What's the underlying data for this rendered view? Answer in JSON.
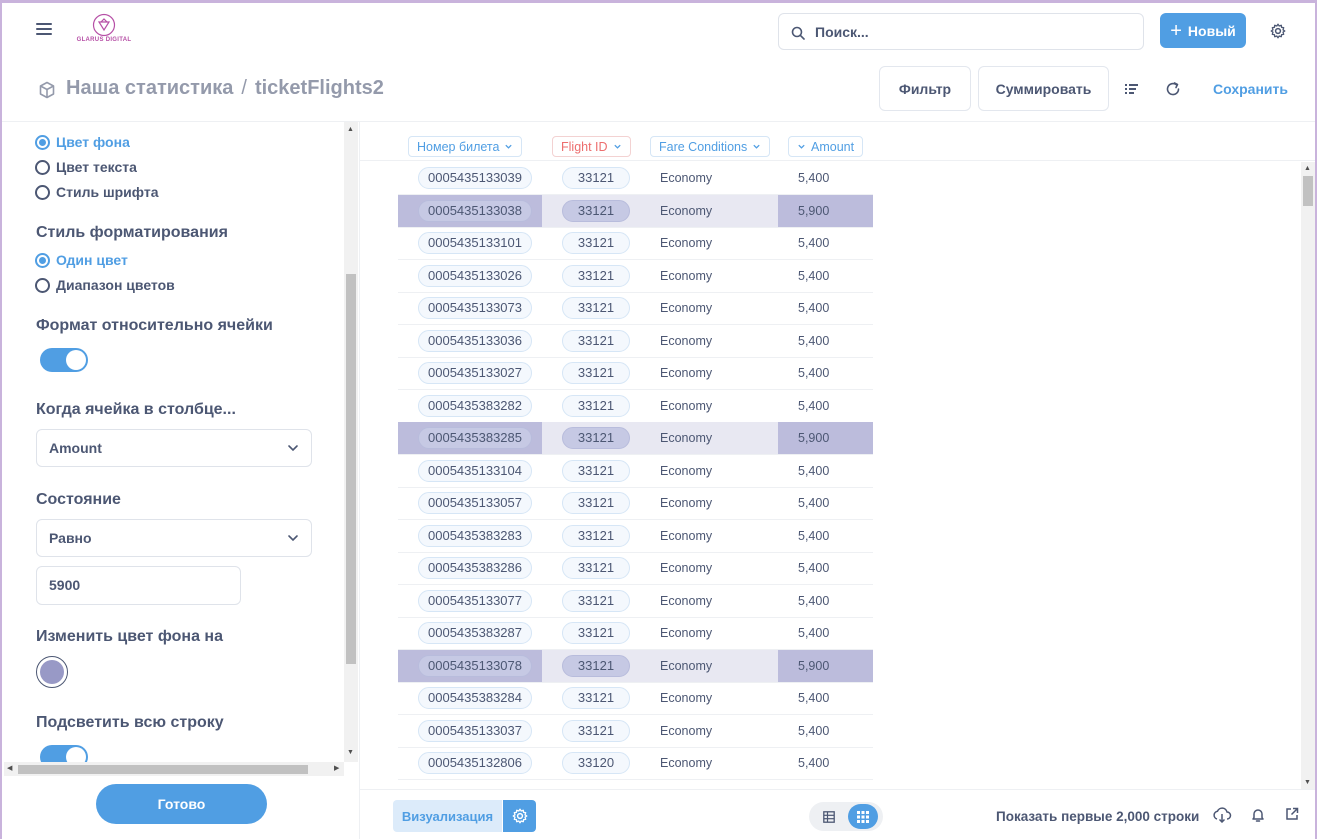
{
  "topbar": {
    "logo_text": "GLARUS DIGITAL",
    "search_placeholder": "Поиск...",
    "new_label": "Новый"
  },
  "header": {
    "collection": "Наша статистика",
    "separator": "/",
    "question": "ticketFlights2",
    "filter_label": "Фильтр",
    "summarize_label": "Суммировать",
    "save_label": "Сохранить"
  },
  "sidebar": {
    "style_options": [
      {
        "label": "Цвет фона",
        "selected": true
      },
      {
        "label": "Цвет текста",
        "selected": false
      },
      {
        "label": "Стиль шрифта",
        "selected": false
      }
    ],
    "format_style_heading": "Стиль форматирования",
    "format_style_options": [
      {
        "label": "Один цвет",
        "selected": true
      },
      {
        "label": "Диапазон цветов",
        "selected": false
      }
    ],
    "relative_heading": "Формат относительно ячейки",
    "relative_enabled": true,
    "column_heading": "Когда ячейка в столбце...",
    "column_value": "Amount",
    "condition_heading": "Состояние",
    "condition_value": "Равно",
    "condition_input": "5900",
    "bg_color_heading": "Изменить цвет фона на",
    "bg_color": "#9899c6",
    "highlight_heading": "Подсветить всю строку",
    "highlight_enabled": true,
    "done_label": "Готово"
  },
  "table": {
    "columns": [
      "Номер билета",
      "Flight ID",
      "Fare Conditions",
      "Amount"
    ],
    "highlight_color": "#bcbcdc",
    "rows": [
      {
        "ticket": "0005435133039",
        "flight": "33121",
        "fare": "Economy",
        "amount": "5,400",
        "hl": false
      },
      {
        "ticket": "0005435133038",
        "flight": "33121",
        "fare": "Economy",
        "amount": "5,900",
        "hl": true
      },
      {
        "ticket": "0005435133101",
        "flight": "33121",
        "fare": "Economy",
        "amount": "5,400",
        "hl": false
      },
      {
        "ticket": "0005435133026",
        "flight": "33121",
        "fare": "Economy",
        "amount": "5,400",
        "hl": false
      },
      {
        "ticket": "0005435133073",
        "flight": "33121",
        "fare": "Economy",
        "amount": "5,400",
        "hl": false
      },
      {
        "ticket": "0005435133036",
        "flight": "33121",
        "fare": "Economy",
        "amount": "5,400",
        "hl": false
      },
      {
        "ticket": "0005435133027",
        "flight": "33121",
        "fare": "Economy",
        "amount": "5,400",
        "hl": false
      },
      {
        "ticket": "0005435383282",
        "flight": "33121",
        "fare": "Economy",
        "amount": "5,400",
        "hl": false
      },
      {
        "ticket": "0005435383285",
        "flight": "33121",
        "fare": "Economy",
        "amount": "5,900",
        "hl": true
      },
      {
        "ticket": "0005435133104",
        "flight": "33121",
        "fare": "Economy",
        "amount": "5,400",
        "hl": false
      },
      {
        "ticket": "0005435133057",
        "flight": "33121",
        "fare": "Economy",
        "amount": "5,400",
        "hl": false
      },
      {
        "ticket": "0005435383283",
        "flight": "33121",
        "fare": "Economy",
        "amount": "5,400",
        "hl": false
      },
      {
        "ticket": "0005435383286",
        "flight": "33121",
        "fare": "Economy",
        "amount": "5,400",
        "hl": false
      },
      {
        "ticket": "0005435133077",
        "flight": "33121",
        "fare": "Economy",
        "amount": "5,400",
        "hl": false
      },
      {
        "ticket": "0005435383287",
        "flight": "33121",
        "fare": "Economy",
        "amount": "5,400",
        "hl": false
      },
      {
        "ticket": "0005435133078",
        "flight": "33121",
        "fare": "Economy",
        "amount": "5,900",
        "hl": true
      },
      {
        "ticket": "0005435383284",
        "flight": "33121",
        "fare": "Economy",
        "amount": "5,400",
        "hl": false
      },
      {
        "ticket": "0005435133037",
        "flight": "33121",
        "fare": "Economy",
        "amount": "5,400",
        "hl": false
      },
      {
        "ticket": "0005435132806",
        "flight": "33120",
        "fare": "Economy",
        "amount": "5,400",
        "hl": false
      }
    ]
  },
  "bottombar": {
    "visualization_label": "Визуализация",
    "rows_count_label": "Показать первые 2,000 строки"
  },
  "colors": {
    "accent": "#509ee3",
    "text": "#4c5773",
    "row_highlight": "#e8e8f2"
  }
}
